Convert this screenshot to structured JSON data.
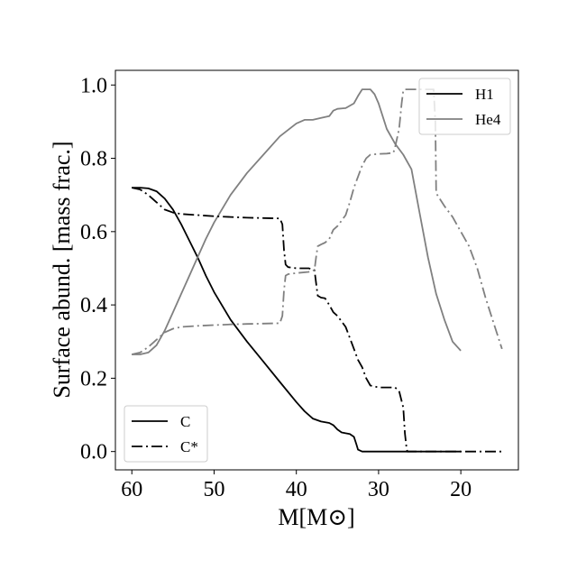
{
  "chart_data": {
    "type": "line",
    "title": "",
    "xlabel": "M[M⊙]",
    "ylabel": "Surface abund. [mass frac.]",
    "xlim": [
      62,
      13
    ],
    "ylim": [
      -0.05,
      1.04
    ],
    "x_inverted": true,
    "grid": false,
    "xticks": [
      60,
      50,
      40,
      30,
      20
    ],
    "yticks": [
      0.0,
      0.2,
      0.4,
      0.6,
      0.8,
      1.0
    ],
    "xtick_labels": [
      "60",
      "50",
      "40",
      "30",
      "20"
    ],
    "ytick_labels": [
      "0.0",
      "0.2",
      "0.4",
      "0.6",
      "0.8",
      "1.0"
    ],
    "legends": [
      {
        "placement": "upper-right",
        "entries": [
          {
            "label": "H1",
            "color": "#000000",
            "style": "solid"
          },
          {
            "label": "He4",
            "color": "#808080",
            "style": "solid"
          }
        ]
      },
      {
        "placement": "lower-left",
        "entries": [
          {
            "label": "C",
            "color": "#000000",
            "style": "solid"
          },
          {
            "label": "C*",
            "color": "#000000",
            "style": "dashdot"
          }
        ]
      }
    ],
    "series": [
      {
        "name": "H1",
        "color": "#000000",
        "style": "solid",
        "x": [
          60,
          59,
          58,
          57,
          56,
          55,
          54,
          53,
          52,
          51,
          50,
          48,
          46,
          44,
          42,
          40,
          39,
          38,
          37,
          36,
          35.5,
          35,
          34.5,
          34,
          33.5,
          33,
          32.7,
          32.5,
          32,
          30,
          28,
          26,
          24,
          22,
          20
        ],
        "y": [
          0.72,
          0.72,
          0.718,
          0.71,
          0.69,
          0.66,
          0.62,
          0.575,
          0.53,
          0.48,
          0.435,
          0.36,
          0.3,
          0.245,
          0.19,
          0.135,
          0.11,
          0.09,
          0.082,
          0.078,
          0.072,
          0.06,
          0.052,
          0.05,
          0.048,
          0.04,
          0.02,
          0.005,
          0.0,
          0.0,
          0.0,
          0.0,
          0.0,
          0.0,
          0.0
        ]
      },
      {
        "name": "He4",
        "color": "#808080",
        "style": "solid",
        "x": [
          60,
          59,
          58,
          57,
          56,
          55,
          54,
          53,
          52,
          51,
          50,
          48,
          46,
          44,
          42,
          40,
          39,
          38,
          37,
          36,
          35.5,
          35,
          34,
          33,
          32.5,
          32,
          31.5,
          31,
          30.5,
          30,
          29,
          28,
          27,
          26,
          25,
          24,
          23,
          22,
          21,
          20
        ],
        "y": [
          0.265,
          0.265,
          0.27,
          0.29,
          0.33,
          0.38,
          0.43,
          0.48,
          0.53,
          0.58,
          0.625,
          0.7,
          0.76,
          0.81,
          0.86,
          0.895,
          0.905,
          0.905,
          0.91,
          0.915,
          0.93,
          0.935,
          0.937,
          0.95,
          0.97,
          0.988,
          0.988,
          0.988,
          0.975,
          0.95,
          0.88,
          0.84,
          0.81,
          0.77,
          0.65,
          0.53,
          0.43,
          0.36,
          0.3,
          0.275
        ]
      },
      {
        "name": "C",
        "color": "#000000",
        "style": "dashdot",
        "x": [
          60,
          59,
          58,
          57,
          56,
          55,
          54,
          52,
          50,
          48,
          46,
          44,
          42,
          41.7,
          41.5,
          41.3,
          41,
          40,
          38.5,
          37.8,
          37.6,
          37.4,
          37,
          36.5,
          36,
          35.5,
          35,
          34.5,
          34,
          33.5,
          33,
          32.5,
          32,
          31.5,
          31,
          30,
          29,
          28,
          27.5,
          27,
          26.8,
          26.6,
          26.5,
          26,
          24,
          22,
          20,
          18,
          16,
          15
        ],
        "y": [
          0.72,
          0.715,
          0.7,
          0.68,
          0.66,
          0.652,
          0.648,
          0.645,
          0.642,
          0.64,
          0.638,
          0.637,
          0.636,
          0.62,
          0.55,
          0.51,
          0.503,
          0.5,
          0.5,
          0.495,
          0.46,
          0.425,
          0.42,
          0.418,
          0.4,
          0.38,
          0.37,
          0.355,
          0.34,
          0.31,
          0.28,
          0.25,
          0.23,
          0.2,
          0.18,
          0.175,
          0.175,
          0.175,
          0.165,
          0.12,
          0.05,
          0.01,
          0.0,
          0.0,
          0.0,
          0.0,
          0.0,
          0.0,
          0.0,
          0.0
        ]
      },
      {
        "name": "He4 (dash-dot)",
        "color": "#808080",
        "style": "dashdot",
        "x": [
          60,
          59,
          58,
          57,
          56,
          55,
          54,
          52,
          50,
          48,
          46,
          44,
          42,
          41.7,
          41.5,
          41.3,
          41,
          40,
          38.5,
          37.8,
          37.6,
          37.4,
          37,
          36.5,
          36,
          35.5,
          35,
          34.5,
          34,
          33.5,
          33,
          32.5,
          32,
          31.5,
          31,
          30,
          29,
          28.2,
          28,
          27.5,
          27.2,
          27,
          26.8,
          26.5,
          26,
          25,
          24,
          23.3,
          23.1,
          23,
          22,
          21,
          20,
          19,
          18,
          17,
          16,
          15
        ],
        "y": [
          0.265,
          0.27,
          0.285,
          0.305,
          0.325,
          0.335,
          0.34,
          0.343,
          0.345,
          0.347,
          0.348,
          0.349,
          0.35,
          0.37,
          0.44,
          0.48,
          0.484,
          0.487,
          0.49,
          0.495,
          0.53,
          0.56,
          0.565,
          0.57,
          0.58,
          0.605,
          0.615,
          0.63,
          0.645,
          0.68,
          0.72,
          0.75,
          0.78,
          0.8,
          0.81,
          0.812,
          0.813,
          0.815,
          0.83,
          0.88,
          0.95,
          0.985,
          0.988,
          0.988,
          0.988,
          0.988,
          0.988,
          0.988,
          0.9,
          0.705,
          0.67,
          0.64,
          0.6,
          0.56,
          0.5,
          0.42,
          0.35,
          0.28
        ]
      }
    ]
  }
}
